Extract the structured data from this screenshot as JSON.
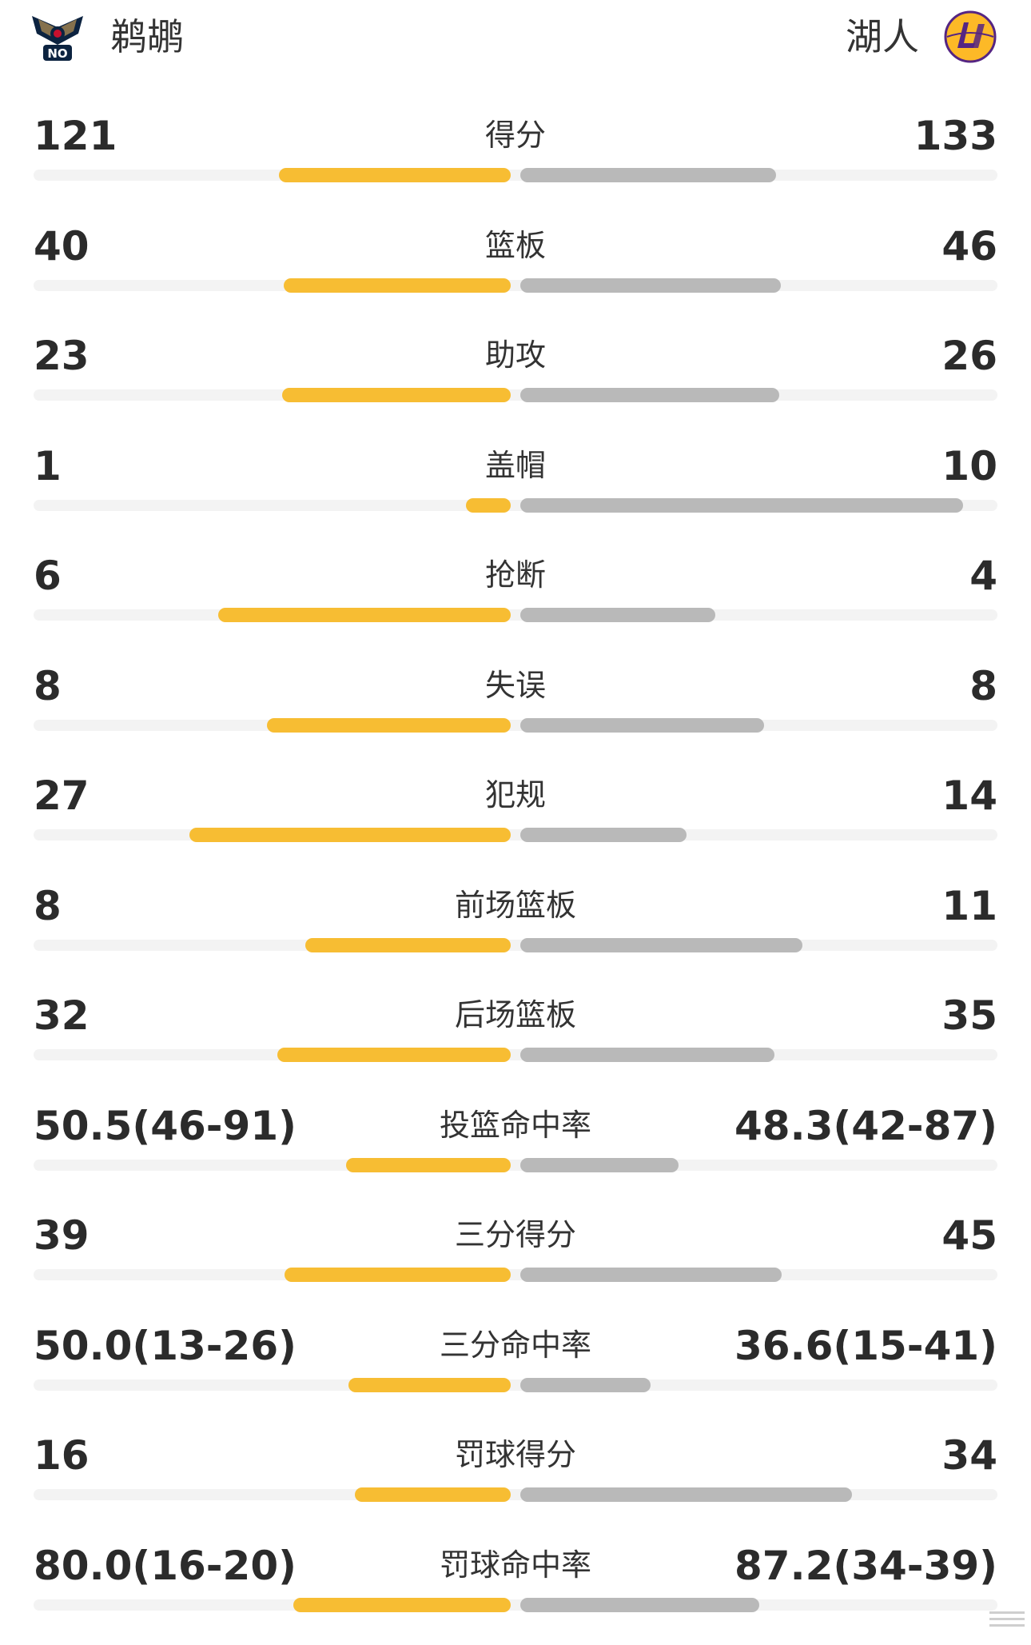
{
  "colors": {
    "home_bar": "#f7bd33",
    "away_bar": "#b9b9b9",
    "track": "#f3f3f3"
  },
  "teams": {
    "home": {
      "name": "鹈鹕",
      "logo_icon": "pelicans-logo-icon"
    },
    "away": {
      "name": "湖人",
      "logo_icon": "lakers-logo-icon"
    }
  },
  "stats": [
    {
      "label": "得分",
      "home": "121",
      "away": "133",
      "home_share": 0.476,
      "away_share": 0.524
    },
    {
      "label": "篮板",
      "home": "40",
      "away": "46",
      "home_share": 0.465,
      "away_share": 0.535
    },
    {
      "label": "助攻",
      "home": "23",
      "away": "26",
      "home_share": 0.469,
      "away_share": 0.531
    },
    {
      "label": "盖帽",
      "home": "1",
      "away": "10",
      "home_share": 0.091,
      "away_share": 0.909
    },
    {
      "label": "抢断",
      "home": "6",
      "away": "4",
      "home_share": 0.6,
      "away_share": 0.4
    },
    {
      "label": "失误",
      "home": "8",
      "away": "8",
      "home_share": 0.5,
      "away_share": 0.5
    },
    {
      "label": "犯规",
      "home": "27",
      "away": "14",
      "home_share": 0.659,
      "away_share": 0.341
    },
    {
      "label": "前场篮板",
      "home": "8",
      "away": "11",
      "home_share": 0.421,
      "away_share": 0.579
    },
    {
      "label": "后场篮板",
      "home": "32",
      "away": "35",
      "home_share": 0.478,
      "away_share": 0.522
    },
    {
      "label": "投篮命中率",
      "home": "50.5(46-91)",
      "away": "48.3(42-87)",
      "home_share": 0.337,
      "away_share": 0.325
    },
    {
      "label": "三分得分",
      "home": "39",
      "away": "45",
      "home_share": 0.464,
      "away_share": 0.536
    },
    {
      "label": "三分命中率",
      "home": "50.0(13-26)",
      "away": "36.6(15-41)",
      "home_share": 0.333,
      "away_share": 0.267
    },
    {
      "label": "罚球得分",
      "home": "16",
      "away": "34",
      "home_share": 0.32,
      "away_share": 0.68
    },
    {
      "label": "罚球命中率",
      "home": "80.0(16-20)",
      "away": "87.2(34-39)",
      "home_share": 0.446,
      "away_share": 0.49
    }
  ]
}
